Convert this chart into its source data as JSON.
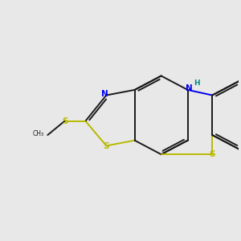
{
  "bg": "#e8e8e8",
  "bc": "#1a1a1a",
  "Sc": "#b8b800",
  "Nc": "#0000ee",
  "NHc": "#008888",
  "lw": 1.4,
  "fs": 7.5,
  "figsize": [
    3.0,
    3.0
  ],
  "dpi": 100,
  "xlim": [
    -1.5,
    8.5
  ],
  "ylim": [
    -1.0,
    5.5
  ]
}
